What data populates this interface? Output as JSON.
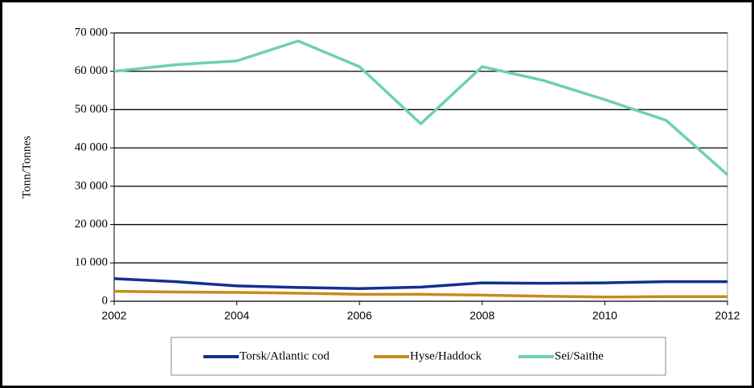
{
  "chart_data": {
    "type": "line",
    "y_label": "Tonn/Tonnes",
    "x": [
      2002,
      2003,
      2004,
      2005,
      2006,
      2007,
      2008,
      2009,
      2010,
      2011,
      2012
    ],
    "series": [
      {
        "name": "Torsk/Atlantic cod",
        "color": "#14308f",
        "values": [
          5900,
          5100,
          4000,
          3600,
          3300,
          3700,
          4800,
          4700,
          4800,
          5100,
          5100
        ]
      },
      {
        "name": "Hyse/Haddock",
        "color": "#c98a1c",
        "values": [
          2600,
          2400,
          2300,
          2100,
          1800,
          1800,
          1600,
          1300,
          1100,
          1200,
          1200
        ]
      },
      {
        "name": "Sei/Saithe",
        "color": "#6dd2a8",
        "values": [
          60000,
          61700,
          62700,
          67900,
          61200,
          46300,
          61200,
          57600,
          52600,
          47200,
          33000
        ]
      }
    ],
    "xlim": [
      2002,
      2012
    ],
    "xticks": [
      2002,
      2004,
      2006,
      2008,
      2010,
      2012
    ],
    "ylim": [
      0,
      70000
    ],
    "yticks": [
      0,
      {
        "value": 10000,
        "label": "10 000"
      },
      {
        "value": 20000,
        "label": "20 000"
      },
      {
        "value": 30000,
        "label": "30 000"
      },
      {
        "value": 40000,
        "label": "40 000"
      },
      {
        "value": 50000,
        "label": "50 000"
      },
      {
        "value": 60000,
        "label": "60 000"
      },
      {
        "value": 70000,
        "label": "70 000"
      }
    ],
    "grid": true,
    "legend": "bottom"
  }
}
